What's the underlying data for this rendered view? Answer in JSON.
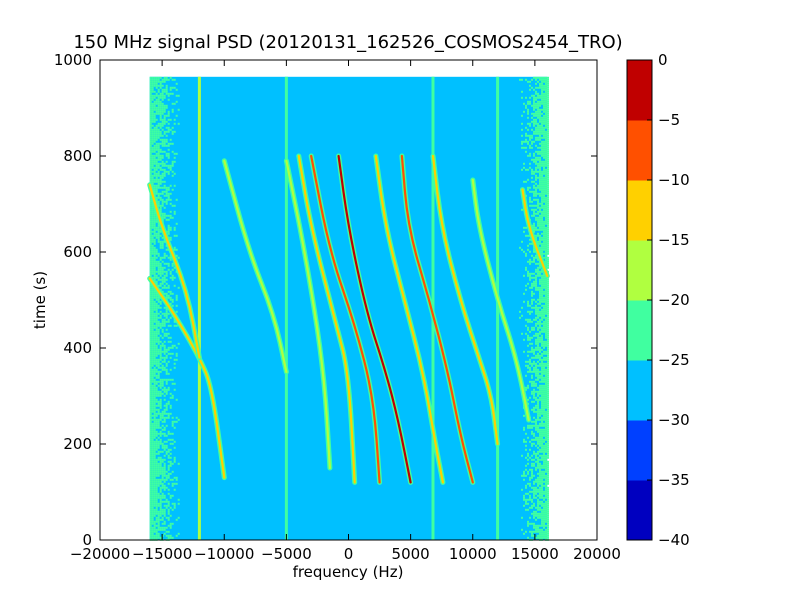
{
  "chart_data": {
    "type": "heatmap",
    "title": "150 MHz signal PSD (20120131_162526_COSMOS2454_TRO)",
    "xlabel": "frequency (Hz)",
    "ylabel": "time (s)",
    "xlim": [
      -20000,
      20000
    ],
    "ylim": [
      0,
      1000
    ],
    "x_ticks": [
      -20000,
      -15000,
      -10000,
      -5000,
      0,
      5000,
      10000,
      15000,
      20000
    ],
    "x_tick_labels": [
      "−20000",
      "−15000",
      "−10000",
      "−5000",
      "0",
      "5000",
      "10000",
      "15000",
      "20000"
    ],
    "y_ticks": [
      0,
      200,
      400,
      600,
      800,
      1000
    ],
    "y_tick_labels": [
      "0",
      "200",
      "400",
      "600",
      "800",
      "1000"
    ],
    "data_extent": {
      "freq_hz": [
        -16000,
        16000
      ],
      "time_s": [
        0,
        965
      ]
    },
    "colorbar": {
      "levels": [
        -40,
        -35,
        -30,
        -25,
        -20,
        -15,
        -10,
        -5,
        0
      ],
      "tick_labels": [
        "−40",
        "−35",
        "−30",
        "−25",
        "−20",
        "−15",
        "−10",
        "−5",
        "0"
      ],
      "colors": [
        "#0000c0",
        "#0040ff",
        "#00c0ff",
        "#40ffa0",
        "#b0ff40",
        "#ffd000",
        "#ff5000",
        "#c00000"
      ]
    },
    "background_level_db": -27.5,
    "edge_noise_level_db": -22.5,
    "vertical_lines": [
      {
        "freq_hz": -12000,
        "level_db": -20
      },
      {
        "freq_hz": -5000,
        "level_db": -22.5
      },
      {
        "freq_hz": 6800,
        "level_db": -22.5
      },
      {
        "freq_hz": 12000,
        "level_db": -25
      }
    ],
    "traces": [
      {
        "points": [
          [
            -16000,
            545
          ],
          [
            -14000,
            470
          ],
          [
            -12000,
            380
          ],
          [
            -11000,
            320
          ],
          [
            -10000,
            130
          ]
        ],
        "level_db": -15
      },
      {
        "points": [
          [
            -16000,
            740
          ],
          [
            -15000,
            650
          ],
          [
            -13000,
            520
          ],
          [
            -12000,
            380
          ]
        ],
        "level_db": -15
      },
      {
        "points": [
          [
            -10000,
            790
          ],
          [
            -8000,
            600
          ],
          [
            -6000,
            470
          ],
          [
            -5000,
            350
          ]
        ],
        "level_db": -20
      },
      {
        "points": [
          [
            -5000,
            790
          ],
          [
            -3500,
            600
          ],
          [
            -2000,
            360
          ],
          [
            -1500,
            150
          ]
        ],
        "level_db": -20
      },
      {
        "points": [
          [
            -4000,
            800
          ],
          [
            -3000,
            650
          ],
          [
            -1000,
            450
          ],
          [
            0,
            350
          ],
          [
            500,
            120
          ]
        ],
        "level_db": -15
      },
      {
        "points": [
          [
            -3000,
            800
          ],
          [
            -1500,
            600
          ],
          [
            500,
            450
          ],
          [
            2000,
            300
          ],
          [
            2500,
            120
          ]
        ],
        "level_db": -10
      },
      {
        "points": [
          [
            -800,
            800
          ],
          [
            0,
            650
          ],
          [
            1500,
            470
          ],
          [
            3000,
            350
          ],
          [
            4000,
            250
          ],
          [
            5000,
            120
          ]
        ],
        "level_db": -5
      },
      {
        "points": [
          [
            2200,
            800
          ],
          [
            3000,
            650
          ],
          [
            4500,
            500
          ],
          [
            6000,
            350
          ],
          [
            7000,
            200
          ],
          [
            7600,
            120
          ]
        ],
        "level_db": -15
      },
      {
        "points": [
          [
            4300,
            800
          ],
          [
            4800,
            650
          ],
          [
            6500,
            500
          ],
          [
            8000,
            350
          ],
          [
            9000,
            220
          ],
          [
            10000,
            120
          ]
        ],
        "level_db": -10
      },
      {
        "points": [
          [
            6800,
            800
          ],
          [
            7500,
            650
          ],
          [
            9000,
            500
          ],
          [
            10500,
            380
          ],
          [
            11500,
            300
          ],
          [
            12000,
            200
          ]
        ],
        "level_db": -15
      },
      {
        "points": [
          [
            10000,
            750
          ],
          [
            10500,
            650
          ],
          [
            12000,
            500
          ],
          [
            13500,
            380
          ],
          [
            14500,
            250
          ]
        ],
        "level_db": -20
      },
      {
        "points": [
          [
            14000,
            730
          ],
          [
            14500,
            650
          ],
          [
            16000,
            550
          ]
        ],
        "level_db": -15
      }
    ]
  }
}
